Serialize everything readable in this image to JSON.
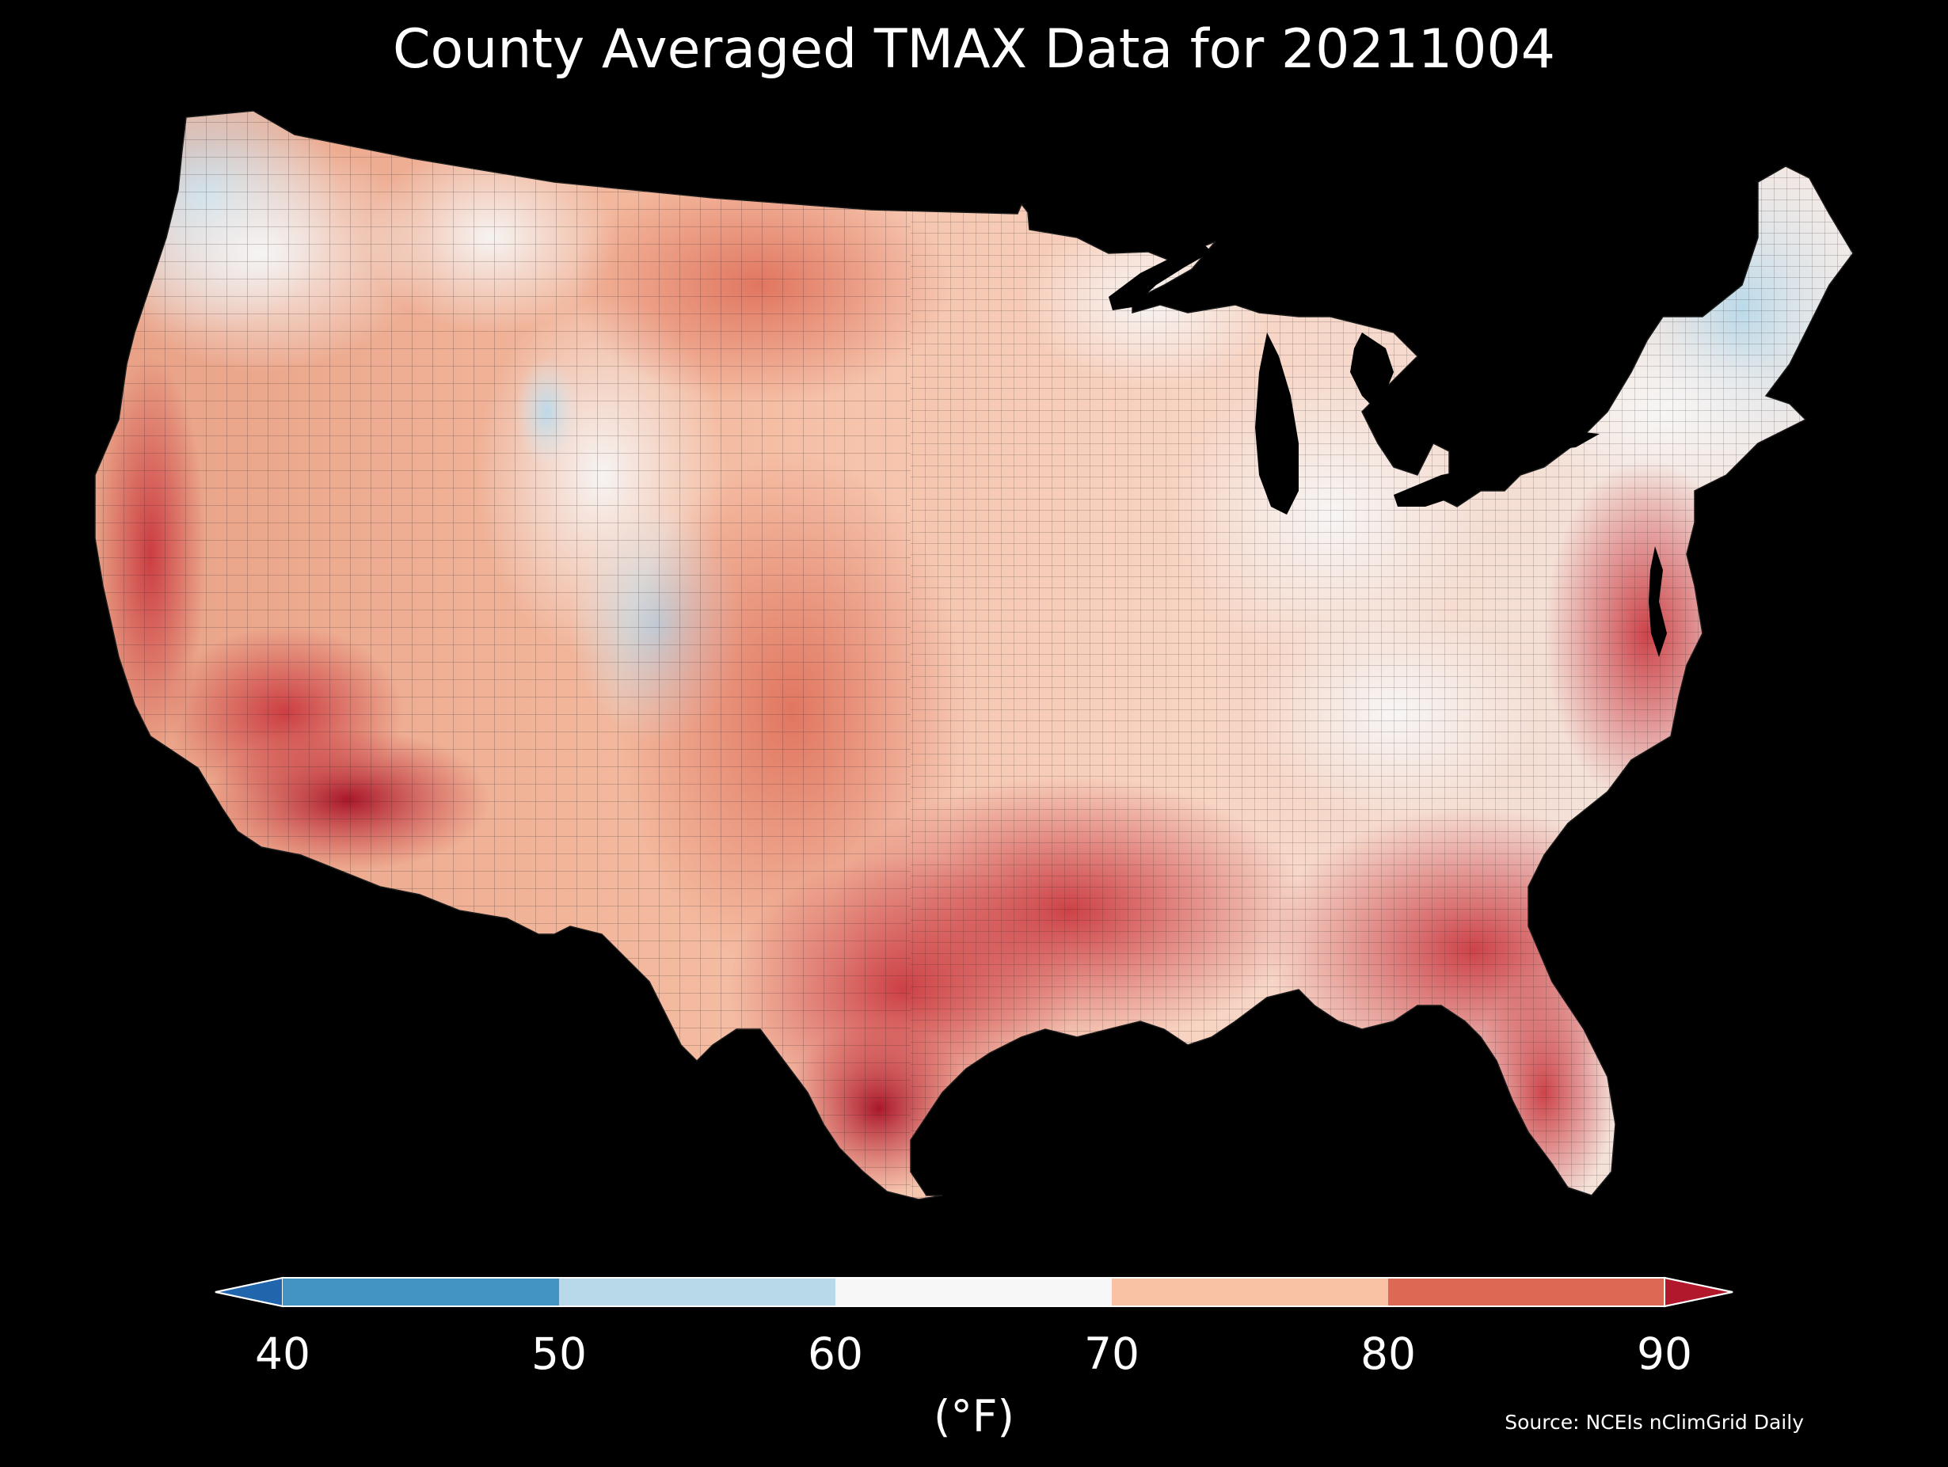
{
  "title": "County Averaged TMAX Data for 20211004",
  "map": {
    "region": "CONUS counties",
    "variable": "TMAX",
    "date": "20211004",
    "background_color": "#000000",
    "border_color": "#1a1a1a",
    "regional_pattern": [
      {
        "region": "Pacific Northwest",
        "class": "50-60"
      },
      {
        "region": "Northern Rockies",
        "class": "60-80"
      },
      {
        "region": "Central Rockies / Colorado",
        "class": "50-70"
      },
      {
        "region": "Northern Plains",
        "class": "70-80"
      },
      {
        "region": "Great Lakes / Upper Midwest",
        "class": "60-70"
      },
      {
        "region": "New England",
        "class": "50-60"
      },
      {
        "region": "Appalachians",
        "class": "60-70"
      },
      {
        "region": "Mid-Atlantic / Southeast coast",
        "class": "80-90"
      },
      {
        "region": "Southern Plains / Texas",
        "class": "80-90"
      },
      {
        "region": "South Texas",
        "class": ">90"
      },
      {
        "region": "Desert Southwest",
        "class": ">90"
      },
      {
        "region": "California coast",
        "class": "80-90"
      },
      {
        "region": "Florida",
        "class": "80-90"
      }
    ]
  },
  "colorbar": {
    "unit_label": "(°F)",
    "ticks": [
      "40",
      "50",
      "60",
      "70",
      "80",
      "90"
    ],
    "bins": [
      {
        "range": "<40",
        "color": "#2166ac"
      },
      {
        "range": "40-50",
        "color": "#4393c3"
      },
      {
        "range": "50-60",
        "color": "#b8d9ea"
      },
      {
        "range": "60-70",
        "color": "#f7f7f7"
      },
      {
        "range": "70-80",
        "color": "#f9c2a4"
      },
      {
        "range": "80-90",
        "color": "#dd6954"
      },
      {
        "range": ">90",
        "color": "#b2182b"
      }
    ],
    "extend": "both"
  },
  "source": "Source: NCEIs nClimGrid Daily"
}
